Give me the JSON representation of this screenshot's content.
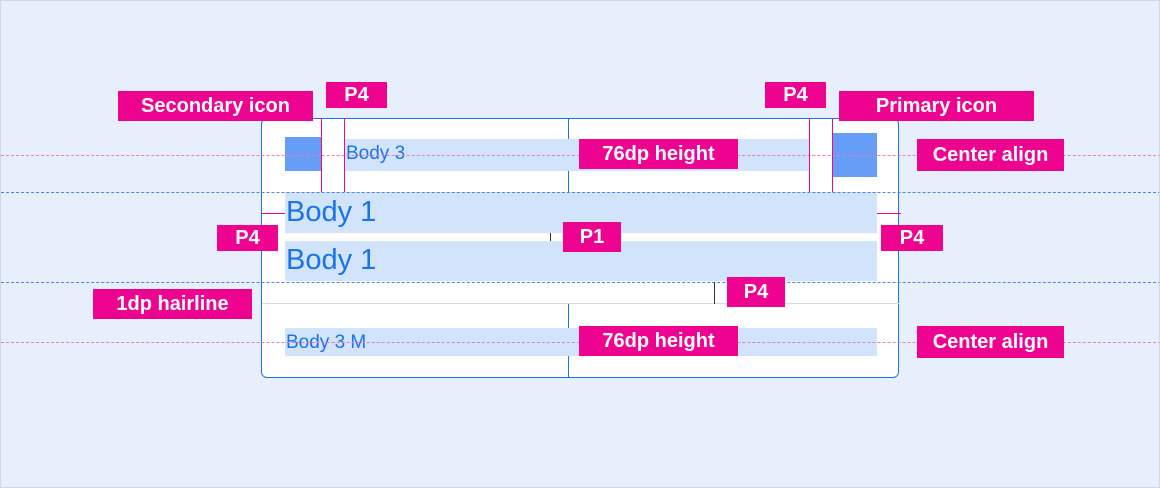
{
  "colors": {
    "annotation": "#ee0290",
    "accent": "#1a73e8",
    "text_bar": "#d2e3fc",
    "icon": "#669df6",
    "background": "#e8effc"
  },
  "list_item": {
    "body3": "Body 3",
    "body1_a": "Body 1",
    "body1_b": "Body 1",
    "body3m": "Body 3 M"
  },
  "annotations": {
    "secondary_icon": "Secondary icon",
    "primary_icon": "Primary icon",
    "p4_top_left": "P4",
    "p4_top_right": "P4",
    "p4_left": "P4",
    "p4_right": "P4",
    "p4_hairline": "P4",
    "p1": "P1",
    "height_top": "76dp height",
    "height_bottom": "76dp height",
    "center_top": "Center align",
    "center_bottom": "Center align",
    "hairline": "1dp hairline"
  }
}
